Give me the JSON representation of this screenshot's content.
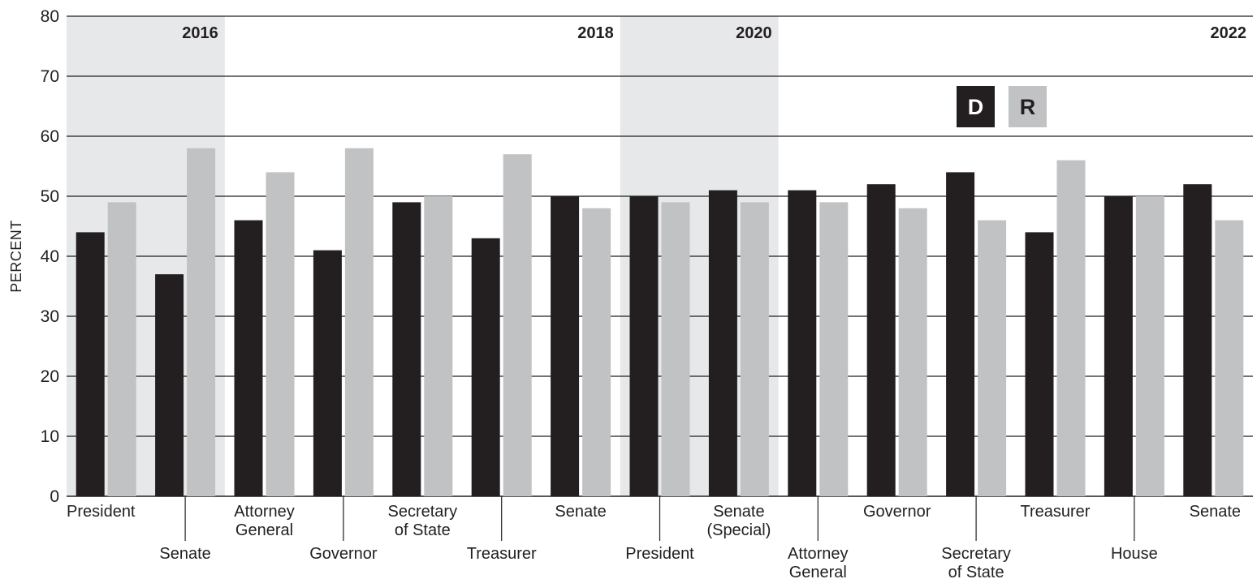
{
  "chart_data": {
    "type": "bar",
    "ylabel": "PERCENT",
    "ylim": [
      0,
      80
    ],
    "yticks": [
      0,
      10,
      20,
      30,
      40,
      50,
      60,
      70,
      80
    ],
    "grid": true,
    "legend_placement": "top-right",
    "colors": {
      "D": "#231f20",
      "R": "#c1c2c4",
      "shade": "#e7e8e9"
    },
    "series": [
      {
        "name": "D",
        "values": [
          44,
          37,
          46,
          41,
          49,
          43,
          50,
          50,
          51,
          51,
          52,
          54,
          44,
          50,
          52
        ]
      },
      {
        "name": "R",
        "values": [
          49,
          58,
          54,
          58,
          50,
          57,
          48,
          49,
          49,
          49,
          48,
          46,
          56,
          50,
          46
        ]
      }
    ],
    "categories": [
      {
        "lines": [
          "President"
        ],
        "row": 1
      },
      {
        "lines": [
          "Senate"
        ],
        "row": 2
      },
      {
        "lines": [
          "Attorney",
          "General"
        ],
        "row": 1
      },
      {
        "lines": [
          "Governor"
        ],
        "row": 2
      },
      {
        "lines": [
          "Secretary",
          "of State"
        ],
        "row": 1
      },
      {
        "lines": [
          "Treasurer"
        ],
        "row": 2
      },
      {
        "lines": [
          "Senate"
        ],
        "row": 1
      },
      {
        "lines": [
          "President"
        ],
        "row": 2
      },
      {
        "lines": [
          "Senate",
          "(Special)"
        ],
        "row": 1
      },
      {
        "lines": [
          "Attorney",
          "General"
        ],
        "row": 2
      },
      {
        "lines": [
          "Governor"
        ],
        "row": 1
      },
      {
        "lines": [
          "Secretary",
          "of State"
        ],
        "row": 2
      },
      {
        "lines": [
          "Treasurer"
        ],
        "row": 1
      },
      {
        "lines": [
          "House"
        ],
        "row": 2
      },
      {
        "lines": [
          "Senate"
        ],
        "row": 1
      }
    ],
    "years": [
      {
        "label": "2016",
        "start": 0,
        "end": 1,
        "shaded": true
      },
      {
        "label": "2018",
        "start": 2,
        "end": 6,
        "shaded": false
      },
      {
        "label": "2020",
        "start": 7,
        "end": 8,
        "shaded": true
      },
      {
        "label": "2022",
        "start": 9,
        "end": 14,
        "shaded": false
      }
    ]
  }
}
